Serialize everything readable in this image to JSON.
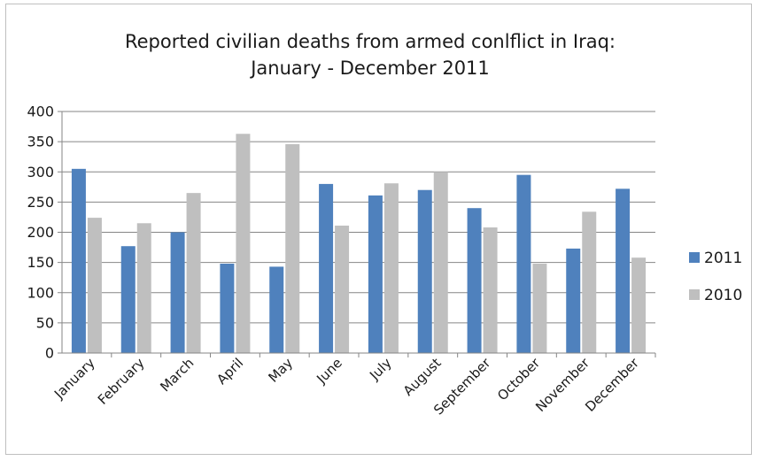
{
  "chart_data": {
    "type": "bar",
    "title": [
      "Reported civilian deaths from armed conlflict in Iraq:",
      "January - December 2011"
    ],
    "categories": [
      "January",
      "February",
      "March",
      "April",
      "May",
      "June",
      "July",
      "August",
      "September",
      "October",
      "November",
      "December"
    ],
    "series": [
      {
        "name": "2011",
        "color": "#4f81bd",
        "values": [
          305,
          177,
          200,
          148,
          143,
          280,
          261,
          270,
          240,
          295,
          173,
          272
        ]
      },
      {
        "name": "2010",
        "color": "#bfbfbf",
        "values": [
          224,
          215,
          265,
          363,
          346,
          211,
          281,
          300,
          208,
          148,
          234,
          158
        ]
      }
    ],
    "y_ticks": [
      "0",
      "50",
      "100",
      "150",
      "200",
      "250",
      "300",
      "350",
      "400"
    ],
    "ylim": [
      0,
      400
    ],
    "grid": true,
    "legend_position": "right",
    "xlabel": "",
    "ylabel": ""
  }
}
